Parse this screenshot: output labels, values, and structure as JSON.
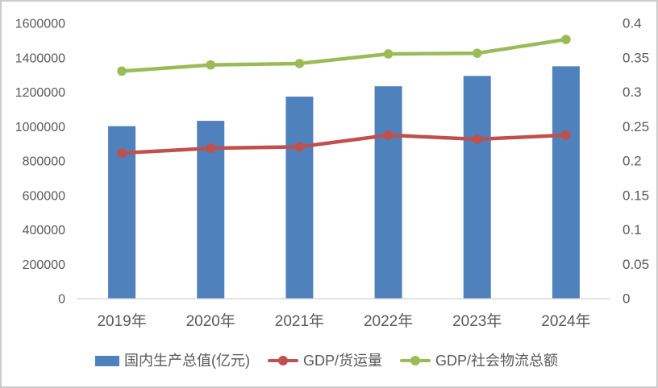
{
  "chart_data": {
    "type": "combo-bar-line",
    "title": "",
    "categories": [
      "2019年",
      "2020年",
      "2021年",
      "2022年",
      "2023年",
      "2024年"
    ],
    "series": [
      {
        "name": "国内生产总值(亿元)",
        "type": "bar",
        "axis": "left",
        "color": "#4F81BD",
        "values": [
          1000000,
          1031000,
          1172000,
          1232000,
          1292000,
          1348000
        ]
      },
      {
        "name": "GDP/货运量",
        "type": "line",
        "axis": "right",
        "color": "#C0504D",
        "values": [
          0.211,
          0.218,
          0.22,
          0.237,
          0.231,
          0.237
        ]
      },
      {
        "name": "GDP/社会物流总额",
        "type": "line",
        "axis": "right",
        "color": "#9BBB59",
        "values": [
          0.33,
          0.339,
          0.341,
          0.355,
          0.356,
          0.376
        ]
      }
    ],
    "left_axis": {
      "min": 0,
      "max": 1600000,
      "step": 200000,
      "tick_labels": [
        "0",
        "200000",
        "400000",
        "600000",
        "800000",
        "1000000",
        "1200000",
        "1400000",
        "1600000"
      ]
    },
    "right_axis": {
      "min": 0,
      "max": 0.4,
      "step": 0.05,
      "tick_labels": [
        "0",
        "0.05",
        "0.1",
        "0.15",
        "0.2",
        "0.25",
        "0.3",
        "0.35",
        "0.4"
      ]
    },
    "legend_position": "bottom",
    "grid": false
  },
  "styles": {
    "axis_text_color": "#595959",
    "axis_line_color": "#D9D9D9",
    "background": "#FFFFFF",
    "border_color": "#CBCBCB"
  }
}
